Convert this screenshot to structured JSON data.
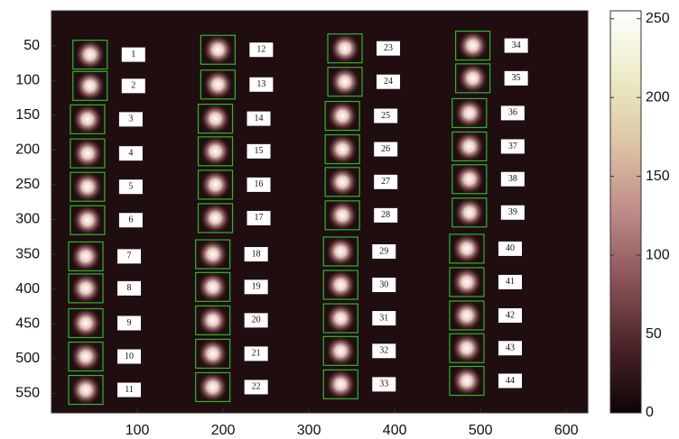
{
  "chart_data": {
    "type": "image",
    "xlim": [
      0,
      625
    ],
    "ylim": [
      0,
      578
    ],
    "y_reversed": true,
    "xticks": [
      100,
      200,
      300,
      400,
      500,
      600
    ],
    "yticks": [
      50,
      100,
      150,
      200,
      250,
      300,
      350,
      400,
      450,
      500,
      550
    ],
    "background": "#1f0d10",
    "box_color": "#2fb52f",
    "colorbar": {
      "clim": [
        0,
        255
      ],
      "ticks": [
        0,
        50,
        100,
        150,
        200,
        250
      ],
      "colormap": [
        "#0d0405",
        "#4a2428",
        "#8c5458",
        "#c08a88",
        "#dcc4a6",
        "#ecebc6",
        "#ffffff"
      ]
    },
    "spots": [
      {
        "label": "1",
        "x": 45,
        "y": 63
      },
      {
        "label": "2",
        "x": 45,
        "y": 108
      },
      {
        "label": "3",
        "x": 42,
        "y": 156
      },
      {
        "label": "4",
        "x": 42,
        "y": 205
      },
      {
        "label": "5",
        "x": 42,
        "y": 253
      },
      {
        "label": "6",
        "x": 42,
        "y": 301
      },
      {
        "label": "7",
        "x": 40,
        "y": 353
      },
      {
        "label": "8",
        "x": 40,
        "y": 399
      },
      {
        "label": "9",
        "x": 40,
        "y": 449
      },
      {
        "label": "10",
        "x": 40,
        "y": 497
      },
      {
        "label": "11",
        "x": 40,
        "y": 545
      },
      {
        "label": "12",
        "x": 194,
        "y": 56
      },
      {
        "label": "13",
        "x": 194,
        "y": 106
      },
      {
        "label": "14",
        "x": 191,
        "y": 155
      },
      {
        "label": "15",
        "x": 191,
        "y": 202
      },
      {
        "label": "16",
        "x": 191,
        "y": 250
      },
      {
        "label": "17",
        "x": 191,
        "y": 298
      },
      {
        "label": "18",
        "x": 188,
        "y": 350
      },
      {
        "label": "19",
        "x": 188,
        "y": 397
      },
      {
        "label": "20",
        "x": 188,
        "y": 445
      },
      {
        "label": "21",
        "x": 188,
        "y": 493
      },
      {
        "label": "22",
        "x": 188,
        "y": 541
      },
      {
        "label": "23",
        "x": 342,
        "y": 54
      },
      {
        "label": "24",
        "x": 342,
        "y": 102
      },
      {
        "label": "25",
        "x": 339,
        "y": 151
      },
      {
        "label": "26",
        "x": 339,
        "y": 199
      },
      {
        "label": "27",
        "x": 339,
        "y": 246
      },
      {
        "label": "28",
        "x": 339,
        "y": 294
      },
      {
        "label": "29",
        "x": 337,
        "y": 346
      },
      {
        "label": "30",
        "x": 337,
        "y": 394
      },
      {
        "label": "31",
        "x": 337,
        "y": 442
      },
      {
        "label": "32",
        "x": 337,
        "y": 489
      },
      {
        "label": "33",
        "x": 337,
        "y": 537
      },
      {
        "label": "34",
        "x": 491,
        "y": 50
      },
      {
        "label": "35",
        "x": 491,
        "y": 97
      },
      {
        "label": "36",
        "x": 487,
        "y": 147
      },
      {
        "label": "37",
        "x": 487,
        "y": 195
      },
      {
        "label": "38",
        "x": 487,
        "y": 242
      },
      {
        "label": "39",
        "x": 487,
        "y": 290
      },
      {
        "label": "40",
        "x": 484,
        "y": 342
      },
      {
        "label": "41",
        "x": 484,
        "y": 390
      },
      {
        "label": "42",
        "x": 484,
        "y": 438
      },
      {
        "label": "43",
        "x": 484,
        "y": 485
      },
      {
        "label": "44",
        "x": 484,
        "y": 532
      }
    ]
  }
}
